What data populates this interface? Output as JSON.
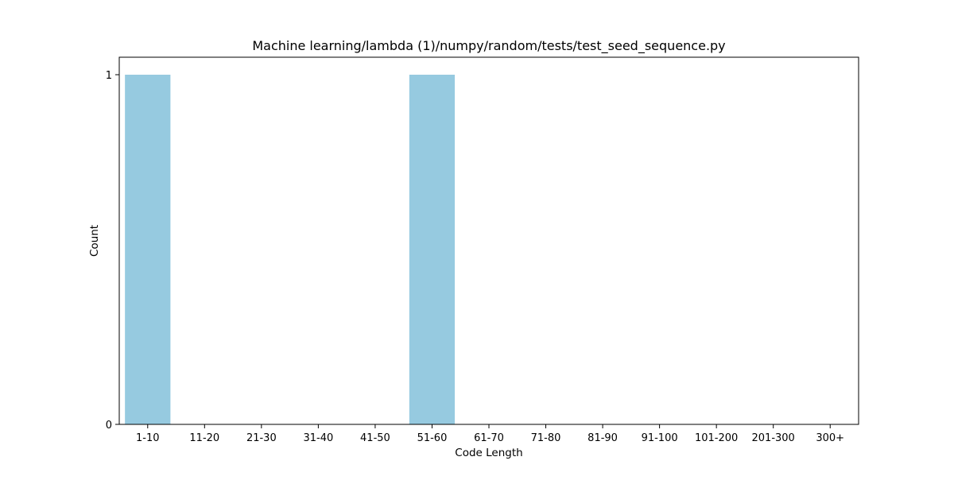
{
  "chart_data": {
    "type": "bar",
    "title": "Machine learning/lambda (1)/numpy/random/tests/test_seed_sequence.py",
    "xlabel": "Code Length",
    "ylabel": "Count",
    "categories": [
      "1-10",
      "11-20",
      "21-30",
      "31-40",
      "41-50",
      "51-60",
      "61-70",
      "71-80",
      "81-90",
      "91-100",
      "101-200",
      "201-300",
      "300+"
    ],
    "values": [
      1,
      0,
      0,
      0,
      0,
      1,
      0,
      0,
      0,
      0,
      0,
      0,
      0
    ],
    "ylim": [
      0,
      1.05
    ],
    "yticks": [
      0,
      1
    ],
    "ytick_labels": [
      "0",
      "1"
    ],
    "bar_color": "#96CAE0",
    "grid": false,
    "legend": "none"
  }
}
